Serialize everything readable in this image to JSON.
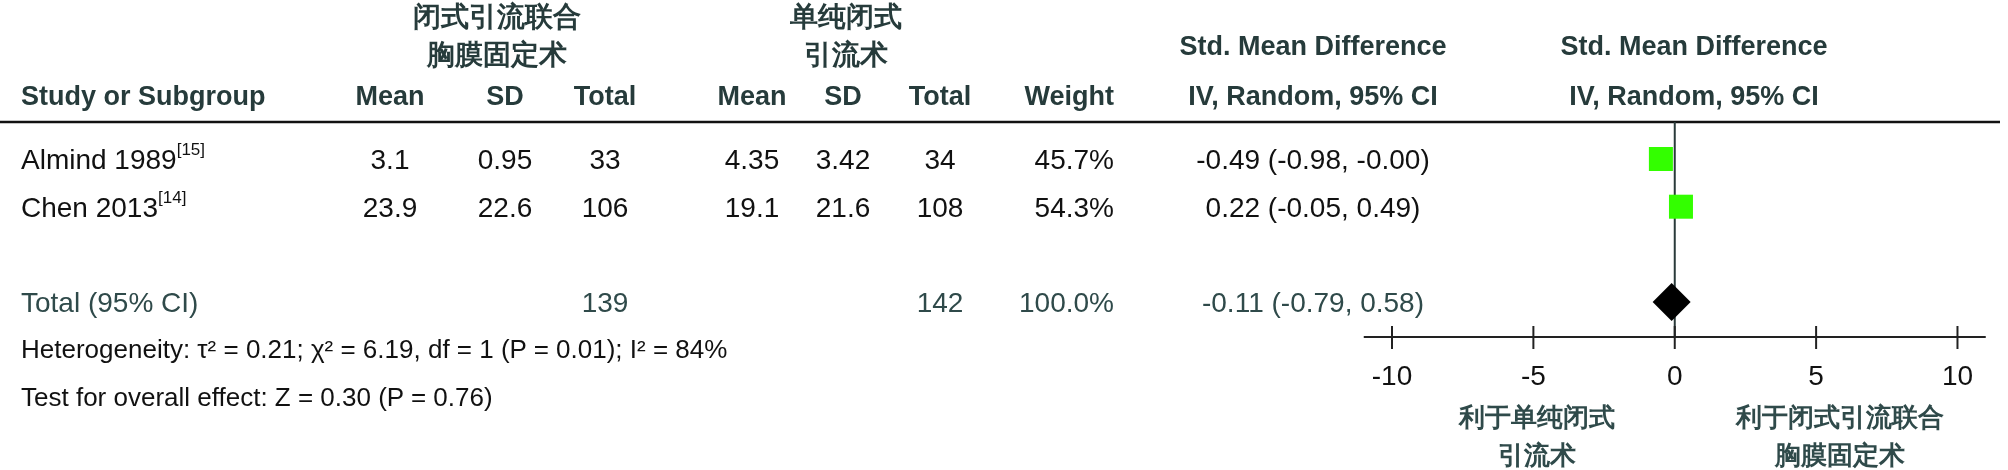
{
  "chart_data": [
    {
      "type": "other",
      "categories": [
        "Almind 1989$^{[15]}$",
        "Chen 2013$^{[14]}$",
        null,
        "Total (95% CI)"
      ],
      "data_labels": true,
      "series": [
        {
          "type": "other",
          "name": "Mean",
          "values": [
            3.1,
            23.9,
            null,
            null
          ]
        },
        {
          "type": "other",
          "name": "SD",
          "values": [
            0.95,
            22.6,
            null,
            null
          ]
        },
        {
          "type": "other",
          "name": "Total",
          "values": [
            33,
            106,
            null,
            139
          ]
        },
        {
          "type": "other",
          "name": "Mean",
          "values": [
            4.35,
            19.1,
            null,
            null
          ]
        },
        {
          "type": "other",
          "name": "SD",
          "values": [
            3.42,
            21.6,
            null,
            null
          ]
        },
        {
          "type": "other",
          "name": "Total",
          "values": [
            34,
            108,
            null,
            142
          ]
        },
        {
          "type": "other",
          "name": "Weight",
          "values": [
            45.7,
            54.3,
            null,
            100.0
          ],
          "value_labels": [
            "45.7%",
            "54.3%",
            null,
            "100.0%"
          ]
        },
        {
          "type": "other",
          "name": "Std. Mean Difference\nIV, Random, 95% CI",
          "values": [
            -0.49,
            0.22,
            null,
            -0.11
          ],
          "value_labels": [
            "-0.49 (-0.98, -0.00)",
            "0.22 (-0.05, 0.49)",
            null,
            "-0.11 (-0.79, 0.58)"
          ]
        }
      ],
      "annotations": [
        "Study or Subgroup",
        "闭式引流联合胸膜固定术",
        "单纯闭式引流术",
        "Heterogeneity: τ² = 0.21; χ² = 6.19, df = 1 (P = 0.01); I² = 84%",
        "Test for overall effect: Z = 0.30 (P = 0.76)"
      ]
    },
    {
      "type": "scatter",
      "orientation": "horizontal",
      "title": "Std. Mean Difference\nIV, Random, 95% CI",
      "categories": [
        null,
        null,
        null,
        null
      ],
      "tick_labels": "x",
      "series": [
        {
          "type": "scatter",
          "marker": "square",
          "color": "#33ff00",
          "values": [
            -0.49,
            0.22,
            null,
            null
          ]
        },
        {
          "type": "scatter",
          "marker": "diamond",
          "color": "#000000",
          "values": [
            null,
            null,
            null,
            -0.11
          ]
        }
      ],
      "xlim": [
        -11,
        11
      ],
      "xticks": [
        -10,
        -5,
        0,
        5,
        10
      ],
      "ref_lines": [
        {
          "axis": "x",
          "value": 0
        }
      ],
      "annotations": [
        "利于单纯闭式引流术",
        "利于闭式引流联合胸膜固定术"
      ]
    }
  ]
}
